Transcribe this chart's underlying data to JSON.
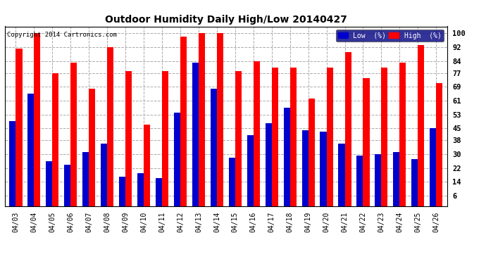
{
  "title": "Outdoor Humidity Daily High/Low 20140427",
  "copyright": "Copyright 2014 Cartronics.com",
  "dates": [
    "04/03",
    "04/04",
    "04/05",
    "04/06",
    "04/07",
    "04/08",
    "04/09",
    "04/10",
    "04/11",
    "04/12",
    "04/13",
    "04/14",
    "04/15",
    "04/16",
    "04/17",
    "04/18",
    "04/19",
    "04/20",
    "04/21",
    "04/22",
    "04/23",
    "04/24",
    "04/25",
    "04/26"
  ],
  "high": [
    91,
    100,
    77,
    83,
    68,
    92,
    78,
    47,
    78,
    98,
    100,
    100,
    78,
    84,
    80,
    80,
    62,
    80,
    89,
    74,
    80,
    83,
    93,
    71
  ],
  "low": [
    49,
    65,
    26,
    24,
    31,
    36,
    17,
    19,
    16,
    54,
    83,
    68,
    28,
    41,
    48,
    57,
    44,
    43,
    36,
    29,
    30,
    31,
    27,
    45
  ],
  "high_color": "#ff0000",
  "low_color": "#0000cc",
  "background_color": "#ffffff",
  "plot_bg_color": "#ffffff",
  "grid_color": "#aaaaaa",
  "yticks": [
    6,
    14,
    22,
    30,
    38,
    45,
    53,
    61,
    69,
    77,
    84,
    92,
    100
  ],
  "ylim_max": 104,
  "bar_width": 0.35,
  "legend_low_label": "Low  (%)",
  "legend_high_label": "High  (%)"
}
